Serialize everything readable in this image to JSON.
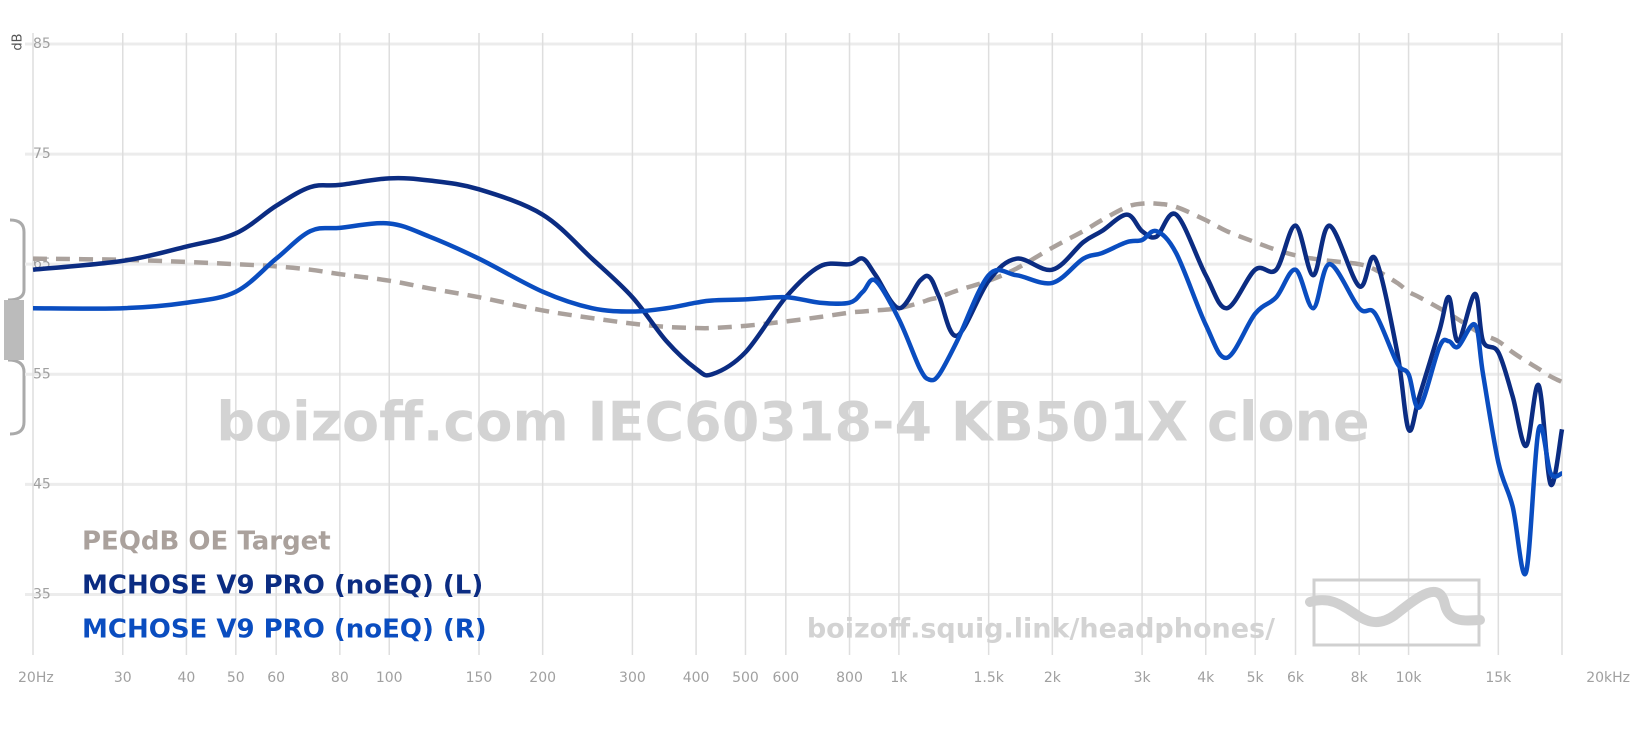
{
  "chart_data": {
    "type": "line",
    "y_label": "dB",
    "watermark": "boizoff.com IEC60318-4 KB501X clone",
    "site": "boizoff.squig.link/headphones/",
    "x_scale": "log",
    "grid": true,
    "legend": "lower left",
    "xlim": [
      20,
      20000
    ],
    "ylim": [
      29.5,
      86
    ],
    "xticks": [
      {
        "value": 20,
        "label": "20Hz"
      },
      30,
      40,
      50,
      60,
      80,
      100,
      150,
      200,
      300,
      400,
      500,
      600,
      800,
      {
        "value": 1000,
        "label": "1k"
      },
      {
        "value": 1500,
        "label": "1.5k"
      },
      {
        "value": 2000,
        "label": "2k"
      },
      {
        "value": 3000,
        "label": "3k"
      },
      {
        "value": 4000,
        "label": "4k"
      },
      {
        "value": 5000,
        "label": "5k"
      },
      {
        "value": 6000,
        "label": "6k"
      },
      {
        "value": 8000,
        "label": "8k"
      },
      {
        "value": 10000,
        "label": "10k"
      },
      {
        "value": 15000,
        "label": "15k"
      },
      {
        "value": 20000,
        "label": "20kHz"
      }
    ],
    "yticks": [
      35,
      45,
      55,
      65,
      75,
      85
    ],
    "x": [
      20,
      30,
      40,
      50,
      60,
      70,
      80,
      100,
      120,
      150,
      200,
      250,
      300,
      350,
      400,
      430,
      500,
      600,
      700,
      800,
      850,
      900,
      1000,
      1100,
      1150,
      1200,
      1300,
      1500,
      1700,
      2000,
      2300,
      2500,
      2800,
      3000,
      3200,
      3500,
      4000,
      4400,
      5000,
      5500,
      6000,
      6500,
      7000,
      8000,
      8600,
      9500,
      10000,
      10500,
      11500,
      12000,
      12500,
      13500,
      14000,
      15000,
      16000,
      17000,
      18000,
      19000,
      20000
    ],
    "series": [
      {
        "name": "PEQdB OE Target",
        "color": "#aaa19c",
        "dashed": true,
        "values": [
          65.5,
          65.4,
          65.2,
          65,
          64.8,
          64.5,
          64.1,
          63.5,
          62.8,
          62,
          60.8,
          60.1,
          59.6,
          59.3,
          59.2,
          59.2,
          59.4,
          59.8,
          60.2,
          60.6,
          60.7,
          60.8,
          61,
          61.5,
          61.8,
          62,
          62.6,
          63.5,
          64.6,
          66.5,
          68,
          69,
          70.2,
          70.5,
          70.5,
          70.2,
          69,
          68,
          67,
          66.3,
          65.8,
          65.5,
          65.3,
          65,
          64.5,
          63.3,
          62.5,
          62,
          61,
          60.5,
          60,
          59,
          58.6,
          58,
          57,
          56.2,
          55.5,
          54.8,
          54.3
        ]
      },
      {
        "name": "MCHOSE V9 PRO (noEQ) (L)",
        "color": "#0b2c82",
        "dashed": false,
        "values": [
          64.5,
          65.3,
          66.6,
          67.8,
          70.3,
          72,
          72.2,
          72.8,
          72.6,
          71.8,
          69.5,
          65.5,
          62,
          58,
          55.5,
          55,
          57,
          62,
          64.8,
          65,
          65.5,
          64,
          61,
          63.5,
          63.8,
          62,
          58.5,
          63.5,
          65.5,
          64.5,
          67,
          68,
          69.5,
          68,
          67.5,
          69.5,
          64,
          61,
          64.5,
          64.5,
          68.5,
          64,
          68.5,
          63,
          65.5,
          57,
          50,
          53,
          59,
          62,
          58,
          62.3,
          58,
          57,
          53,
          48.5,
          54,
          45,
          50
        ]
      },
      {
        "name": "MCHOSE V9 PRO (noEQ) (R)",
        "color": "#0a4dc0",
        "dashed": false,
        "values": [
          61,
          61,
          61.5,
          62.5,
          65.5,
          68,
          68.3,
          68.7,
          67.5,
          65.5,
          62.5,
          61,
          60.7,
          61,
          61.5,
          61.7,
          61.8,
          62,
          61.5,
          61.5,
          62.5,
          63.5,
          60,
          55.5,
          54.5,
          55,
          58,
          64,
          64,
          63.3,
          65.5,
          66,
          67,
          67.2,
          68,
          66,
          59.5,
          56.5,
          60.5,
          62,
          64.5,
          61,
          65,
          61,
          60.5,
          56,
          55,
          52,
          57.5,
          58,
          57.5,
          59.5,
          55,
          47,
          43,
          37,
          50,
          46,
          46
        ]
      }
    ]
  }
}
